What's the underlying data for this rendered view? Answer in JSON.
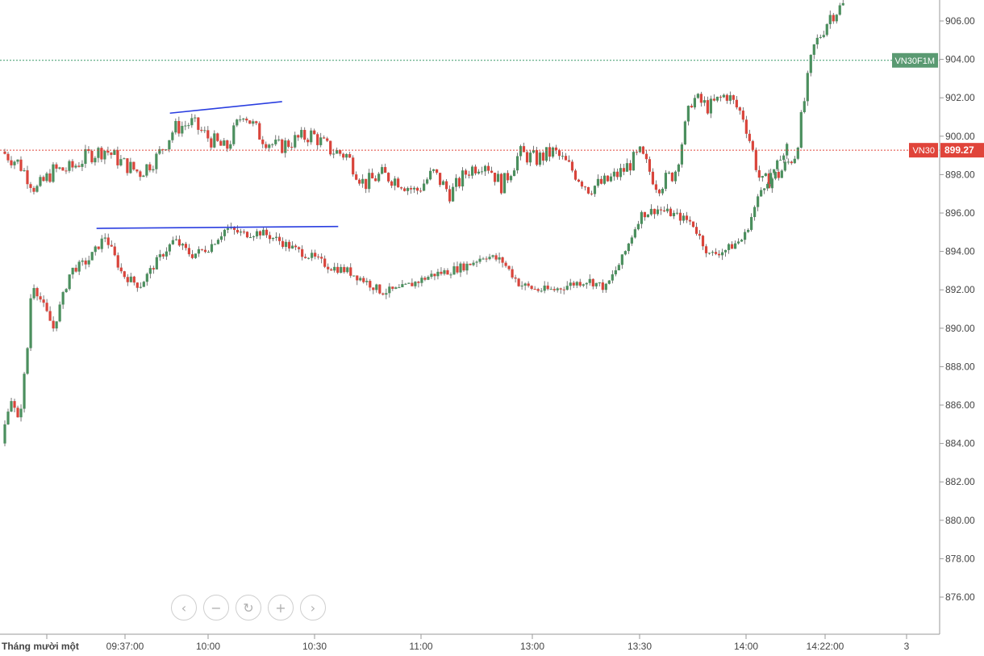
{
  "chart_data": {
    "type": "candlestick",
    "y_axis": {
      "position": "right",
      "ticks": [
        "906.00",
        "904.00",
        "902.00",
        "900.00",
        "898.00",
        "896.00",
        "894.00",
        "892.00",
        "890.00",
        "888.00",
        "886.00",
        "884.00",
        "882.00",
        "880.00",
        "878.00",
        "876.00"
      ],
      "range": [
        874.5,
        907
      ]
    },
    "x_axis": {
      "ticks": [
        "Tháng mười một",
        "09:37:00",
        "10:00",
        "10:30",
        "11:00",
        "13:00",
        "13:30",
        "14:00",
        "14:22:00",
        "3"
      ]
    },
    "series": [
      {
        "name": "VN30F1M",
        "badge_value": "",
        "last_price": 903.95,
        "price_line_color": "#3a9a6a",
        "badge_color": "#5a9a72",
        "path": [
          [
            0.0,
            899.2
          ],
          [
            0.02,
            898.6
          ],
          [
            0.04,
            897.2
          ],
          [
            0.06,
            898.2
          ],
          [
            0.08,
            898.3
          ],
          [
            0.1,
            899.0
          ],
          [
            0.12,
            899.3
          ],
          [
            0.14,
            898.6
          ],
          [
            0.16,
            898.1
          ],
          [
            0.18,
            898.9
          ],
          [
            0.2,
            900.4
          ],
          [
            0.22,
            900.7
          ],
          [
            0.24,
            899.9
          ],
          [
            0.26,
            899.3
          ],
          [
            0.28,
            901.3
          ],
          [
            0.3,
            900.0
          ],
          [
            0.32,
            899.4
          ],
          [
            0.34,
            899.8
          ],
          [
            0.36,
            900.1
          ],
          [
            0.38,
            899.3
          ],
          [
            0.4,
            899.0
          ],
          [
            0.42,
            897.5
          ],
          [
            0.44,
            898.0
          ],
          [
            0.46,
            897.7
          ],
          [
            0.48,
            897.1
          ],
          [
            0.5,
            898.1
          ],
          [
            0.52,
            897.0
          ],
          [
            0.54,
            898.2
          ],
          [
            0.56,
            898.7
          ],
          [
            0.58,
            897.4
          ],
          [
            0.6,
            899.1
          ],
          [
            0.62,
            898.8
          ],
          [
            0.64,
            899.2
          ],
          [
            0.66,
            898.3
          ],
          [
            0.68,
            897.3
          ],
          [
            0.7,
            897.6
          ],
          [
            0.72,
            898.2
          ],
          [
            0.74,
            899.1
          ],
          [
            0.76,
            897.4
          ],
          [
            0.78,
            898.1
          ],
          [
            0.8,
            902.0
          ],
          [
            0.82,
            901.5
          ],
          [
            0.84,
            902.2
          ],
          [
            0.86,
            901.0
          ],
          [
            0.88,
            897.5
          ],
          [
            0.9,
            898.0
          ],
          [
            0.92,
            899.1
          ],
          [
            0.94,
            904.5
          ],
          [
            0.96,
            906.3
          ],
          [
            0.975,
            906.8
          ]
        ]
      },
      {
        "name": "VN30",
        "badge_value": "899.27",
        "last_price": 899.27,
        "price_line_color": "#e0443a",
        "badge_color": "#e0443a",
        "path": [
          [
            0.0,
            884.0
          ],
          [
            0.01,
            886.5
          ],
          [
            0.02,
            885.0
          ],
          [
            0.03,
            889.0
          ],
          [
            0.035,
            892.5
          ],
          [
            0.05,
            891.0
          ],
          [
            0.06,
            890.0
          ],
          [
            0.08,
            893.0
          ],
          [
            0.1,
            893.5
          ],
          [
            0.12,
            894.8
          ],
          [
            0.14,
            892.8
          ],
          [
            0.16,
            892.2
          ],
          [
            0.18,
            893.5
          ],
          [
            0.2,
            894.6
          ],
          [
            0.22,
            893.8
          ],
          [
            0.24,
            894.2
          ],
          [
            0.26,
            895.2
          ],
          [
            0.28,
            894.9
          ],
          [
            0.3,
            895.0
          ],
          [
            0.32,
            894.6
          ],
          [
            0.34,
            894.1
          ],
          [
            0.36,
            893.7
          ],
          [
            0.38,
            893.2
          ],
          [
            0.4,
            893.0
          ],
          [
            0.42,
            892.5
          ],
          [
            0.44,
            891.9
          ],
          [
            0.46,
            892.0
          ],
          [
            0.48,
            892.4
          ],
          [
            0.5,
            892.8
          ],
          [
            0.52,
            893.0
          ],
          [
            0.54,
            893.3
          ],
          [
            0.56,
            893.8
          ],
          [
            0.58,
            893.5
          ],
          [
            0.6,
            892.3
          ],
          [
            0.62,
            892.0
          ],
          [
            0.64,
            892.0
          ],
          [
            0.66,
            892.3
          ],
          [
            0.68,
            892.5
          ],
          [
            0.7,
            892.1
          ],
          [
            0.72,
            893.7
          ],
          [
            0.74,
            895.9
          ],
          [
            0.76,
            896.2
          ],
          [
            0.78,
            895.9
          ],
          [
            0.8,
            895.5
          ],
          [
            0.82,
            893.8
          ],
          [
            0.84,
            894.1
          ],
          [
            0.86,
            894.7
          ],
          [
            0.88,
            897.2
          ],
          [
            0.9,
            898.6
          ],
          [
            0.91,
            899.4
          ]
        ]
      }
    ],
    "trendlines": [
      {
        "color": "#2a3ee0",
        "from": [
          0.195,
          901.2
        ],
        "to": [
          0.325,
          901.8
        ]
      },
      {
        "color": "#2a3ee0",
        "from": [
          0.11,
          895.2
        ],
        "to": [
          0.39,
          895.3
        ]
      }
    ]
  },
  "controls": {
    "prev_icon": "‹",
    "zoom_out_icon": "−",
    "reset_icon": "↻",
    "zoom_in_icon": "+",
    "next_icon": "›"
  }
}
